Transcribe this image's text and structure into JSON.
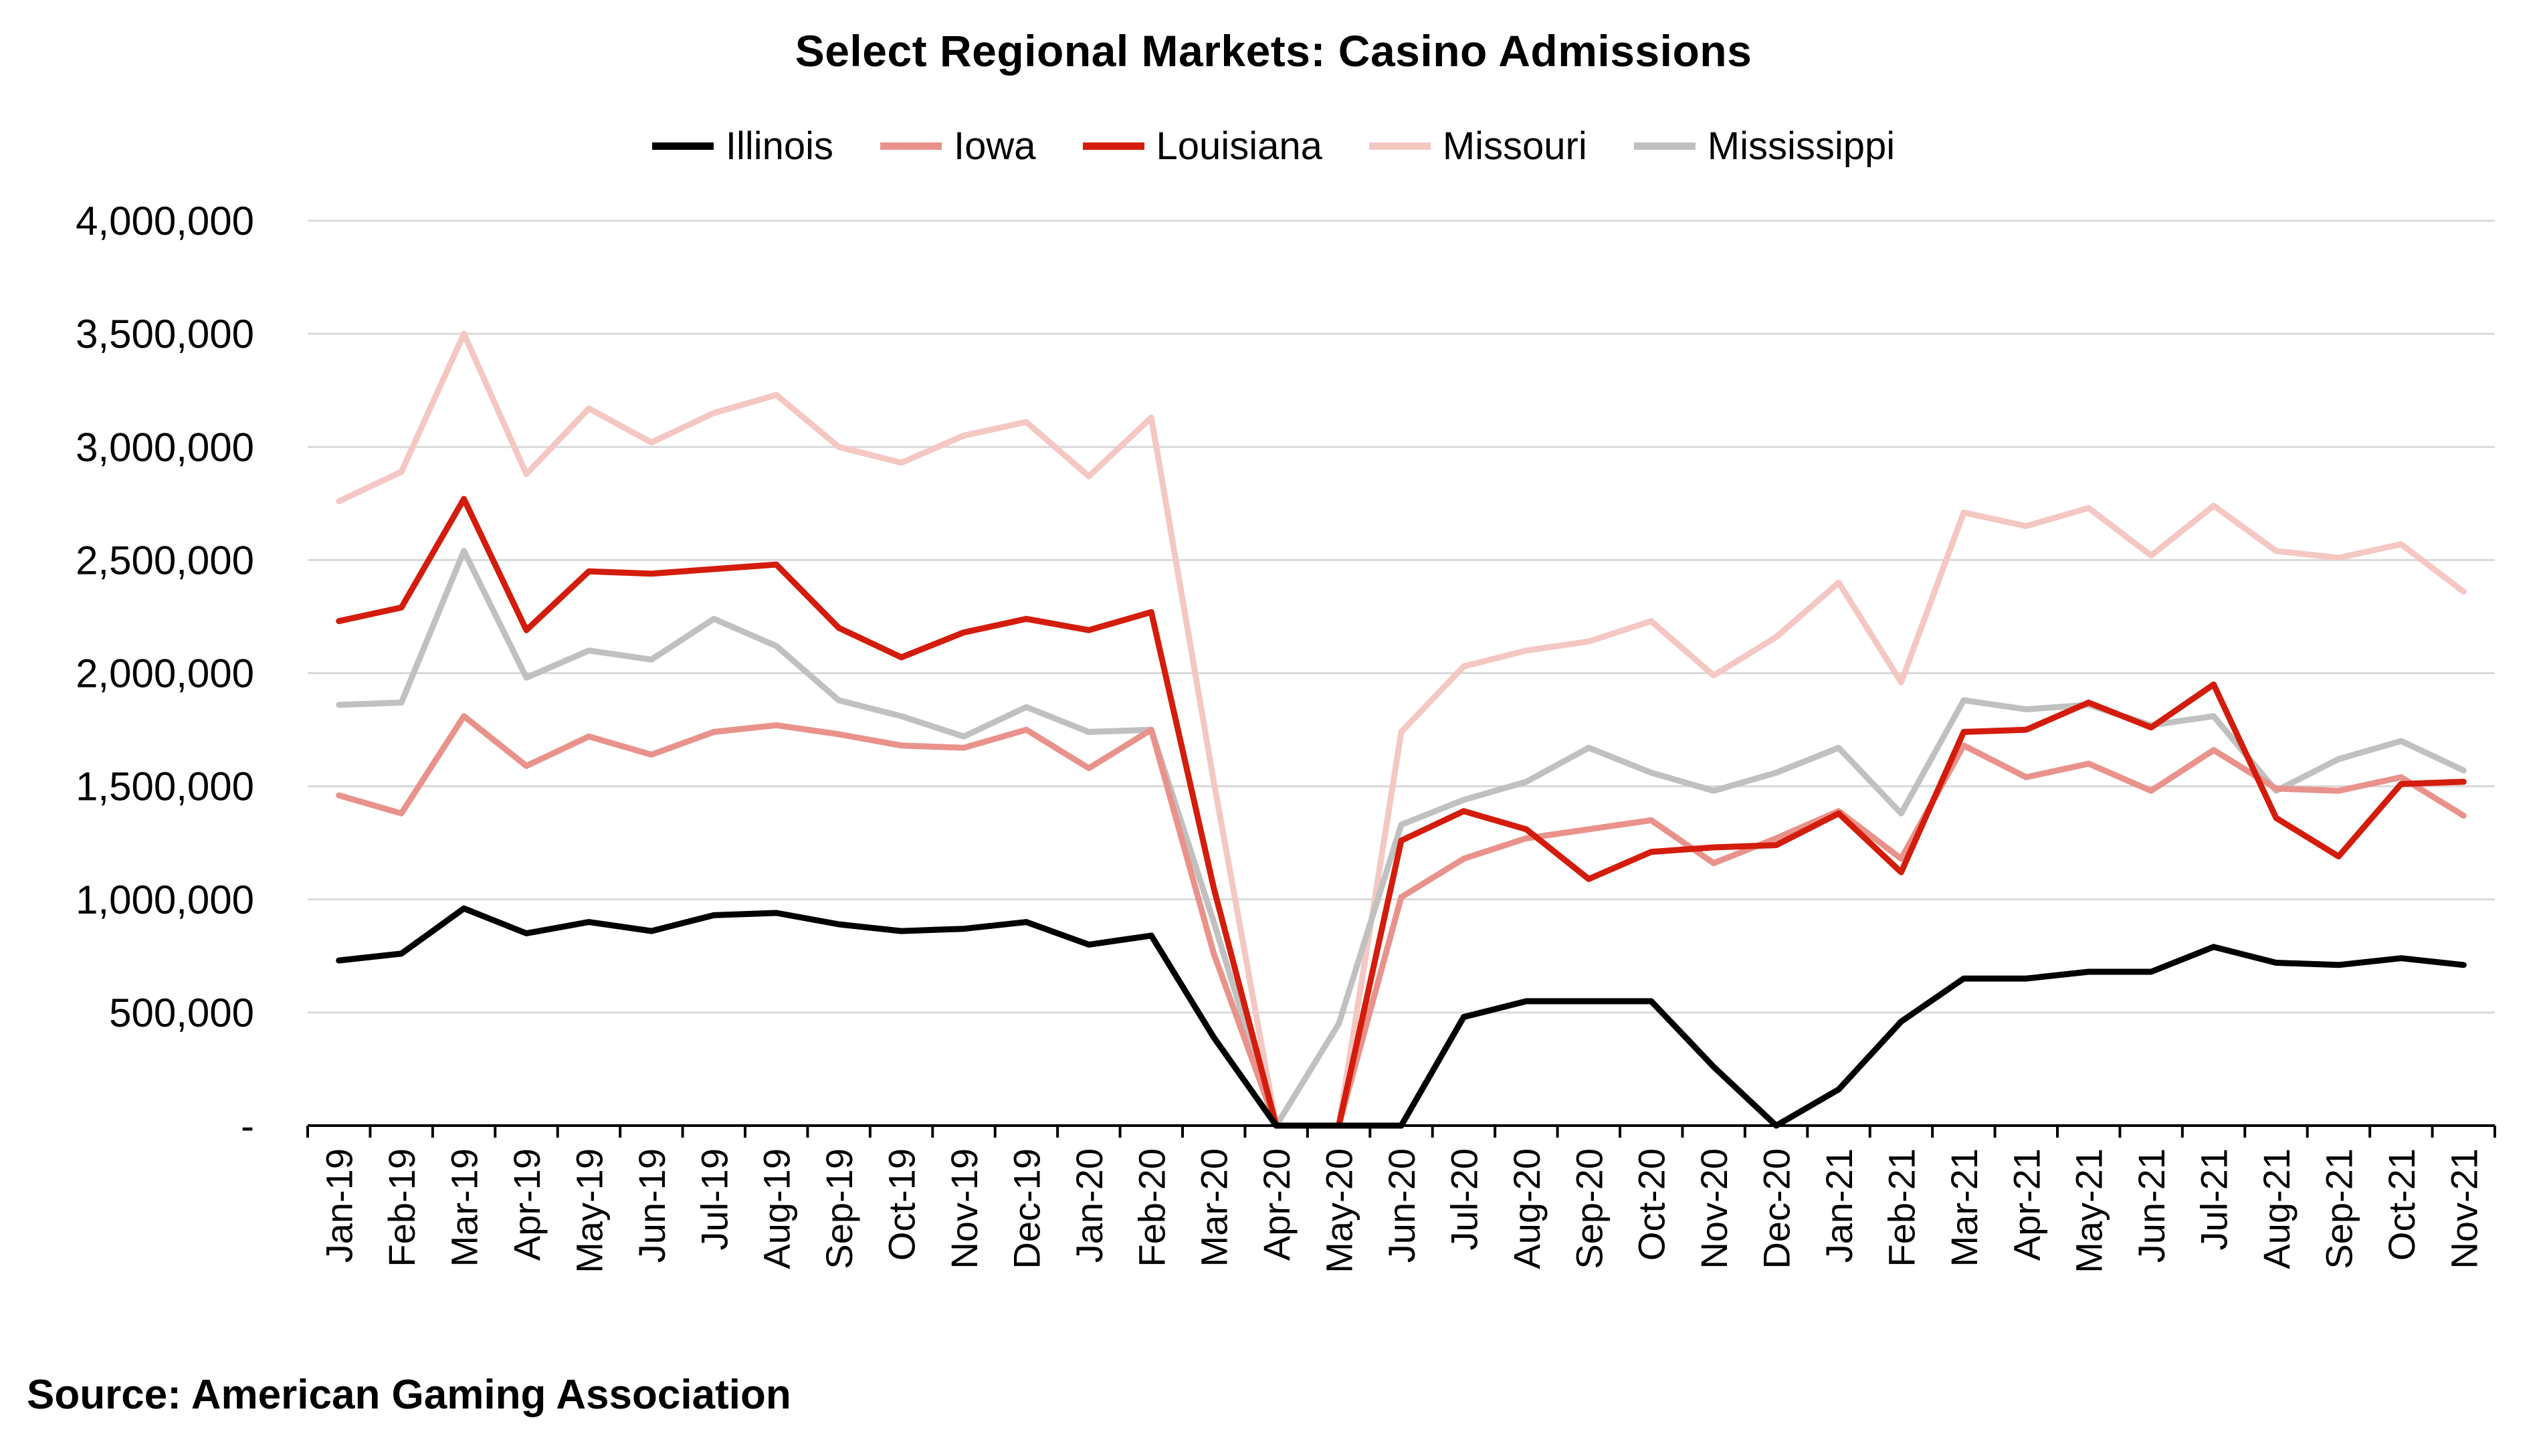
{
  "chart_data": {
    "type": "line",
    "title": "Select Regional Markets: Casino Admissions",
    "xlabel": "",
    "ylabel": "",
    "ylim": [
      0,
      4000000
    ],
    "yticks": [
      0,
      500000,
      1000000,
      1500000,
      2000000,
      2500000,
      3000000,
      3500000,
      4000000
    ],
    "ytick_labels": [
      "-",
      "500,000",
      "1,000,000",
      "1,500,000",
      "2,000,000",
      "2,500,000",
      "3,000,000",
      "3,500,000",
      "4,000,000"
    ],
    "grid": true,
    "legend_position": "top-center",
    "categories": [
      "Jan-19",
      "Feb-19",
      "Mar-19",
      "Apr-19",
      "May-19",
      "Jun-19",
      "Jul-19",
      "Aug-19",
      "Sep-19",
      "Oct-19",
      "Nov-19",
      "Dec-19",
      "Jan-20",
      "Feb-20",
      "Mar-20",
      "Apr-20",
      "May-20",
      "Jun-20",
      "Jul-20",
      "Aug-20",
      "Sep-20",
      "Oct-20",
      "Nov-20",
      "Dec-20",
      "Jan-21",
      "Feb-21",
      "Mar-21",
      "Apr-21",
      "May-21",
      "Jun-21",
      "Jul-21",
      "Aug-21",
      "Sep-21",
      "Oct-21",
      "Nov-21"
    ],
    "series": [
      {
        "name": "Missouri",
        "color": "#f4c7c3",
        "values": [
          2760000,
          2890000,
          3500000,
          2880000,
          3170000,
          3020000,
          3150000,
          3230000,
          3000000,
          2930000,
          3050000,
          3110000,
          2870000,
          3130000,
          1520000,
          0,
          0,
          1740000,
          2030000,
          2100000,
          2140000,
          2230000,
          1990000,
          2160000,
          2400000,
          1960000,
          2710000,
          2650000,
          2730000,
          2520000,
          2740000,
          2540000,
          2510000,
          2570000,
          2360000
        ]
      },
      {
        "name": "Mississippi",
        "color": "#c0c0c0",
        "values": [
          1860000,
          1870000,
          2540000,
          1980000,
          2100000,
          2060000,
          2240000,
          2120000,
          1880000,
          1810000,
          1720000,
          1850000,
          1740000,
          1750000,
          900000,
          0,
          450000,
          1330000,
          1440000,
          1520000,
          1670000,
          1560000,
          1480000,
          1560000,
          1670000,
          1380000,
          1880000,
          1840000,
          1860000,
          1770000,
          1810000,
          1480000,
          1620000,
          1700000,
          1570000
        ]
      },
      {
        "name": "Iowa",
        "color": "#e8928b",
        "values": [
          1460000,
          1380000,
          1810000,
          1590000,
          1720000,
          1640000,
          1740000,
          1770000,
          1730000,
          1680000,
          1670000,
          1750000,
          1580000,
          1750000,
          760000,
          0,
          0,
          1010000,
          1180000,
          1270000,
          1310000,
          1350000,
          1160000,
          1270000,
          1390000,
          1180000,
          1680000,
          1540000,
          1600000,
          1480000,
          1660000,
          1490000,
          1480000,
          1540000,
          1370000
        ]
      },
      {
        "name": "Louisiana",
        "color": "#d41c0c",
        "values": [
          2230000,
          2290000,
          2770000,
          2190000,
          2450000,
          2440000,
          2460000,
          2480000,
          2200000,
          2070000,
          2180000,
          2240000,
          2190000,
          2270000,
          1050000,
          0,
          0,
          1260000,
          1390000,
          1310000,
          1090000,
          1210000,
          1230000,
          1240000,
          1380000,
          1120000,
          1740000,
          1750000,
          1870000,
          1760000,
          1950000,
          1360000,
          1190000,
          1510000,
          1520000
        ]
      },
      {
        "name": "Illinois",
        "color": "#000000",
        "values": [
          730000,
          760000,
          960000,
          850000,
          900000,
          860000,
          930000,
          940000,
          890000,
          860000,
          870000,
          900000,
          800000,
          840000,
          390000,
          0,
          0,
          0,
          480000,
          550000,
          550000,
          550000,
          260000,
          0,
          160000,
          460000,
          650000,
          650000,
          680000,
          680000,
          790000,
          720000,
          710000,
          740000,
          710000
        ]
      }
    ],
    "legend_order": [
      "Illinois",
      "Iowa",
      "Louisiana",
      "Missouri",
      "Mississippi"
    ]
  },
  "source_note": "Source: American Gaming Association"
}
